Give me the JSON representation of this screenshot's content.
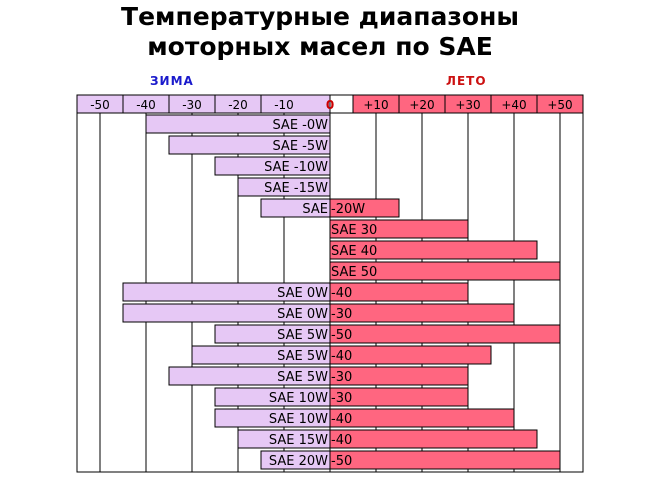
{
  "title_line1": "Температурные диапазоны",
  "title_line2": "моторных масел по SAE",
  "season_winter": "ЗИМА",
  "season_summer": "ЛЕТО",
  "colors": {
    "winter_fill": "#e6c8f5",
    "summer_fill": "#ff6680",
    "winter_label": "#1a1acc",
    "summer_label": "#cc1111",
    "zero_label": "#cc0000",
    "outline": "#000000"
  },
  "chart_data": {
    "type": "bar",
    "orientation": "horizontal",
    "title": "Температурные диапазоны моторных масел по SAE",
    "xlim": [
      -55,
      55
    ],
    "x_ticks": [
      -50,
      -40,
      -30,
      -20,
      -10,
      0,
      10,
      20,
      30,
      40,
      50
    ],
    "x_tick_labels": [
      "-50",
      "-40",
      "-30",
      "-20",
      "-10",
      "0",
      "+10",
      "+20",
      "+30",
      "+40",
      "+50"
    ],
    "grid": true,
    "ranges": [
      {
        "name": "SAE -0W",
        "left_text": "SAE -0W",
        "right_text": "",
        "min": -40,
        "max": 0
      },
      {
        "name": "SAE -5W",
        "left_text": "SAE -5W",
        "right_text": "",
        "min": -35,
        "max": 0
      },
      {
        "name": "SAE -10W",
        "left_text": "SAE -10W",
        "right_text": "",
        "min": -25,
        "max": 0
      },
      {
        "name": "SAE -15W",
        "left_text": "SAE -15W",
        "right_text": "",
        "min": -20,
        "max": 0
      },
      {
        "name": "SAE -20W",
        "left_text": "SAE ",
        "right_text": "-20W",
        "min": -15,
        "max": 15
      },
      {
        "name": "SAE 30",
        "left_text": "",
        "right_text": "SAE 30",
        "min": 0,
        "max": 30
      },
      {
        "name": "SAE 40",
        "left_text": "",
        "right_text": "SAE 40",
        "min": 0,
        "max": 45
      },
      {
        "name": "SAE 50",
        "left_text": "",
        "right_text": "SAE 50",
        "min": 0,
        "max": 50
      },
      {
        "name": "SAE 0W-40",
        "left_text": "SAE 0W",
        "right_text": "-40",
        "min": -45,
        "max": 30
      },
      {
        "name": "SAE 0W-30",
        "left_text": "SAE 0W",
        "right_text": "-30",
        "min": -45,
        "max": 40
      },
      {
        "name": "SAE 5W-50",
        "left_text": "SAE 5W",
        "right_text": "-50",
        "min": -25,
        "max": 50
      },
      {
        "name": "SAE 5W-40",
        "left_text": "SAE 5W",
        "right_text": "-40",
        "min": -30,
        "max": 35
      },
      {
        "name": "SAE 5W-30",
        "left_text": "SAE 5W",
        "right_text": "-30",
        "min": -35,
        "max": 30
      },
      {
        "name": "SAE 10W-30",
        "left_text": "SAE 10W",
        "right_text": "-30",
        "min": -25,
        "max": 30
      },
      {
        "name": "SAE 10W-40",
        "left_text": "SAE 10W",
        "right_text": "-40",
        "min": -25,
        "max": 40
      },
      {
        "name": "SAE 15W-40",
        "left_text": "SAE 15W",
        "right_text": "-40",
        "min": -20,
        "max": 45
      },
      {
        "name": "SAE 20W-50",
        "left_text": "SAE 20W",
        "right_text": "-50",
        "min": -15,
        "max": 50
      }
    ]
  }
}
